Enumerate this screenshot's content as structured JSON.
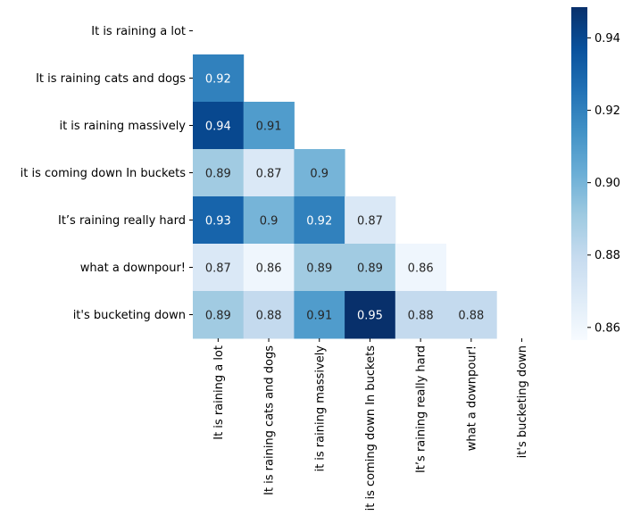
{
  "chart_data": {
    "type": "heatmap",
    "title": "",
    "xlabel": "",
    "ylabel": "",
    "colormap": "Blues",
    "mask": "upper-triangle-including-diagonal",
    "labels": [
      "It is raining a lot",
      "It is raining cats and dogs",
      "it is raining massively",
      "it is coming down In buckets",
      "It’s raining really hard",
      "what a downpour!",
      "it's bucketing down"
    ],
    "matrix": [
      [
        null,
        null,
        null,
        null,
        null,
        null,
        null
      ],
      [
        0.92,
        null,
        null,
        null,
        null,
        null,
        null
      ],
      [
        0.94,
        0.91,
        null,
        null,
        null,
        null,
        null
      ],
      [
        0.89,
        0.87,
        0.9,
        null,
        null,
        null,
        null
      ],
      [
        0.93,
        0.9,
        0.92,
        0.87,
        null,
        null,
        null
      ],
      [
        0.87,
        0.86,
        0.89,
        0.89,
        0.86,
        null,
        null
      ],
      [
        0.89,
        0.88,
        0.91,
        0.95,
        0.88,
        0.88,
        null
      ]
    ],
    "colorbar": {
      "min": 0.8565,
      "max": 0.9485,
      "ticks": [
        0.86,
        0.88,
        0.9,
        0.92,
        0.94
      ],
      "tick_labels": [
        "0.86",
        "0.88",
        "0.90",
        "0.92",
        "0.94"
      ]
    }
  }
}
